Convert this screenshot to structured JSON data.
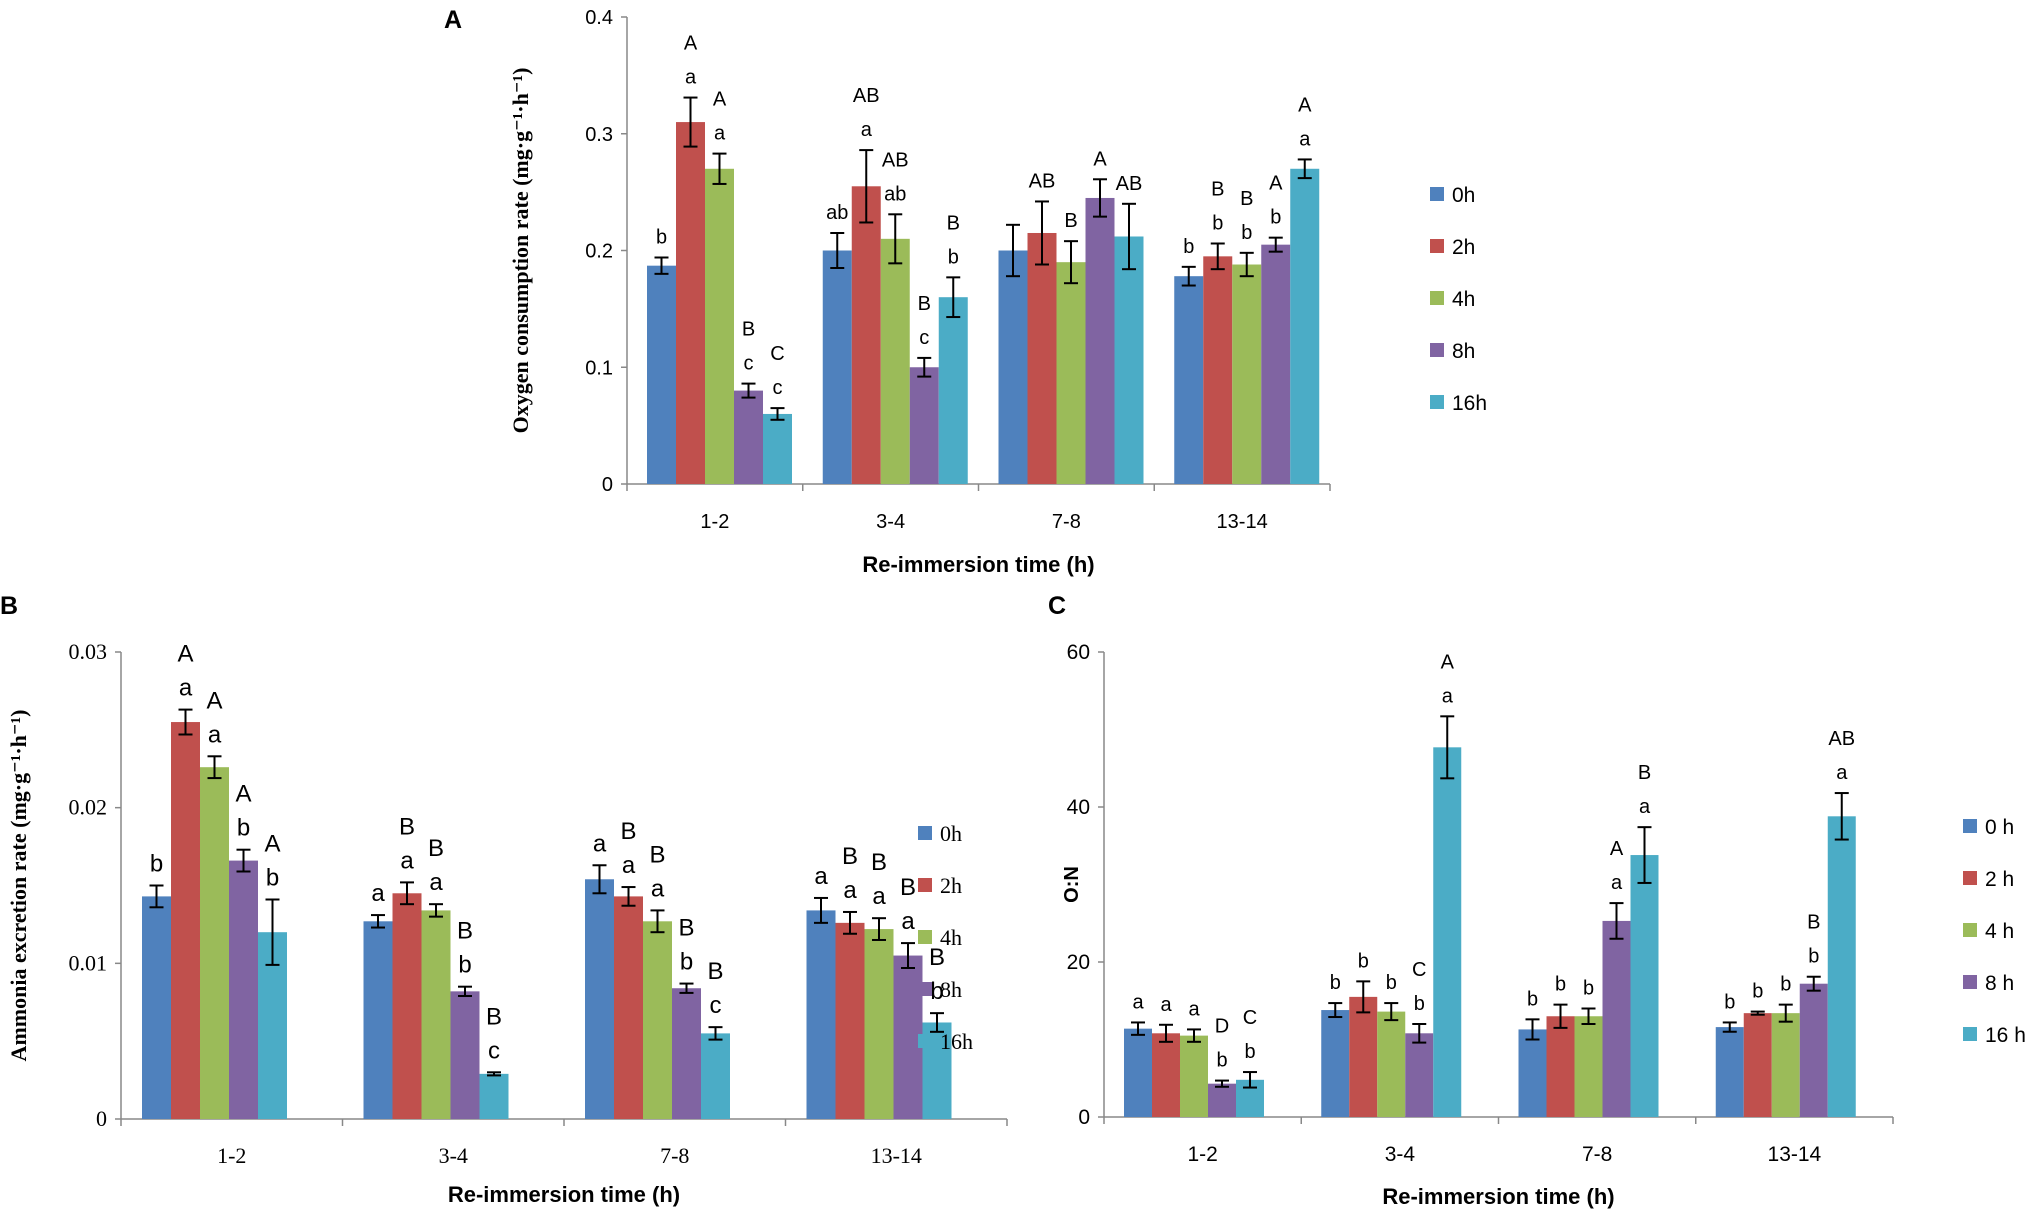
{
  "figure": {
    "colors": {
      "0h": "#4F81BD",
      "2h": "#C0504D",
      "4h": "#9BBB59",
      "8h": "#8064A2",
      "16h": "#4BACC6"
    }
  },
  "chart_data": [
    {
      "panel": "A",
      "type": "bar",
      "title": "",
      "xlabel": "Re-immersion time (h)",
      "ylabel": "Oxygen consumption rate (mg·g⁻¹·h⁻¹)",
      "ylim": [
        0,
        0.4
      ],
      "yticks": [
        0,
        0.1,
        0.2,
        0.3,
        0.4
      ],
      "ytick_labels": [
        "0",
        "0.1",
        "0.2",
        "0.3",
        "0.4"
      ],
      "categories": [
        "1-2",
        "3-4",
        "7-8",
        "13-14"
      ],
      "legend": [
        "0h",
        "2h",
        "4h",
        "8h",
        "16h"
      ],
      "legend_position": "right",
      "series": [
        {
          "name": "0h",
          "values": [
            0.187,
            0.2,
            0.2,
            0.178
          ],
          "errors": [
            0.007,
            0.015,
            0.022,
            0.008
          ],
          "lower": [
            "b",
            "ab",
            "",
            "b"
          ],
          "upper": [
            "",
            "",
            "",
            ""
          ]
        },
        {
          "name": "2h",
          "values": [
            0.31,
            0.255,
            0.215,
            0.195
          ],
          "errors": [
            0.021,
            0.031,
            0.027,
            0.011
          ],
          "lower": [
            "a",
            "a",
            "",
            "b"
          ],
          "upper": [
            "A",
            "AB",
            "AB",
            "B"
          ]
        },
        {
          "name": "4h",
          "values": [
            0.27,
            0.21,
            0.19,
            0.188
          ],
          "errors": [
            0.013,
            0.021,
            0.018,
            0.01
          ],
          "lower": [
            "a",
            "ab",
            "",
            "b"
          ],
          "upper": [
            "A",
            "AB",
            "B",
            "B"
          ]
        },
        {
          "name": "8h",
          "values": [
            0.08,
            0.1,
            0.245,
            0.205
          ],
          "errors": [
            0.006,
            0.008,
            0.016,
            0.006
          ],
          "lower": [
            "c",
            "c",
            "",
            "b"
          ],
          "upper": [
            "B",
            "B",
            "A",
            "A"
          ]
        },
        {
          "name": "16h",
          "values": [
            0.06,
            0.16,
            0.212,
            0.27
          ],
          "errors": [
            0.005,
            0.017,
            0.028,
            0.008
          ],
          "lower": [
            "c",
            "b",
            "",
            "a"
          ],
          "upper": [
            "C",
            "B",
            "AB",
            "A"
          ]
        }
      ]
    },
    {
      "panel": "B",
      "type": "bar",
      "title": "",
      "xlabel": "Re-immersion time (h)",
      "ylabel": "Ammonia excretion rate (mg·g⁻¹·h⁻¹)",
      "ylim": [
        0,
        0.03
      ],
      "yticks": [
        0,
        0.01,
        0.02,
        0.03
      ],
      "ytick_labels": [
        "0",
        "0.01",
        "0.02",
        "0.03"
      ],
      "categories": [
        "1-2",
        "3-4",
        "7-8",
        "13-14"
      ],
      "legend": [
        "0h",
        "2h",
        "4h",
        "8h",
        "16h"
      ],
      "legend_position": "right",
      "series": [
        {
          "name": "0h",
          "values": [
            0.0143,
            0.0127,
            0.0154,
            0.0134
          ],
          "errors": [
            0.0007,
            0.0004,
            0.0009,
            0.0008
          ],
          "lower": [
            "b",
            "a",
            "a",
            "a"
          ],
          "upper": [
            "",
            "",
            "",
            ""
          ]
        },
        {
          "name": "2h",
          "values": [
            0.0255,
            0.0145,
            0.0143,
            0.0126
          ],
          "errors": [
            0.0008,
            0.0007,
            0.0006,
            0.0007
          ],
          "lower": [
            "a",
            "a",
            "a",
            "a"
          ],
          "upper": [
            "A",
            "B",
            "B",
            "B"
          ]
        },
        {
          "name": "4h",
          "values": [
            0.0226,
            0.0134,
            0.0127,
            0.0122
          ],
          "errors": [
            0.0007,
            0.0004,
            0.0007,
            0.0007
          ],
          "lower": [
            "a",
            "a",
            "a",
            "a"
          ],
          "upper": [
            "A",
            "B",
            "B",
            "B"
          ]
        },
        {
          "name": "8h",
          "values": [
            0.0166,
            0.0082,
            0.0084,
            0.0105
          ],
          "errors": [
            0.0007,
            0.0003,
            0.0003,
            0.0008
          ],
          "lower": [
            "b",
            "b",
            "b",
            "a"
          ],
          "upper": [
            "A",
            "B",
            "B",
            "B"
          ]
        },
        {
          "name": "16h",
          "values": [
            0.012,
            0.0029,
            0.0055,
            0.0062
          ],
          "errors": [
            0.0021,
            0.0001,
            0.0004,
            0.0006
          ],
          "lower": [
            "b",
            "c",
            "c",
            "b"
          ],
          "upper": [
            "A",
            "B",
            "B",
            "B"
          ]
        }
      ]
    },
    {
      "panel": "C",
      "type": "bar",
      "title": "",
      "xlabel": "Re-immersion time (h)",
      "ylabel": "O:N",
      "ylim": [
        0,
        60
      ],
      "yticks": [
        0,
        20,
        40,
        60
      ],
      "ytick_labels": [
        "0",
        "20",
        "40",
        "60"
      ],
      "categories": [
        "1-2",
        "3-4",
        "7-8",
        "13-14"
      ],
      "legend": [
        "0 h",
        "2 h",
        "4 h",
        "8 h",
        "16 h"
      ],
      "legend_position": "right",
      "series": [
        {
          "name": "0 h",
          "values": [
            11.4,
            13.8,
            11.3,
            11.6
          ],
          "errors": [
            0.8,
            0.9,
            1.3,
            0.6
          ],
          "lower": [
            "a",
            "b",
            "b",
            "b"
          ],
          "upper": [
            "",
            "",
            "",
            ""
          ]
        },
        {
          "name": "2 h",
          "values": [
            10.8,
            15.5,
            13.0,
            13.4
          ],
          "errors": [
            1.1,
            2.0,
            1.5,
            0.2
          ],
          "lower": [
            "a",
            "b",
            "b",
            "b"
          ],
          "upper": [
            "",
            "",
            "",
            ""
          ]
        },
        {
          "name": "4 h",
          "values": [
            10.5,
            13.6,
            13.0,
            13.4
          ],
          "errors": [
            0.8,
            1.1,
            1.0,
            1.1
          ],
          "lower": [
            "a",
            "b",
            "b",
            "b"
          ],
          "upper": [
            "",
            "",
            "",
            ""
          ]
        },
        {
          "name": "8 h",
          "values": [
            4.3,
            10.8,
            25.3,
            17.2
          ],
          "errors": [
            0.4,
            1.2,
            2.3,
            0.9
          ],
          "lower": [
            "b",
            "b",
            "a",
            "b"
          ],
          "upper": [
            "D",
            "C",
            "A",
            "B"
          ]
        },
        {
          "name": "16 h",
          "values": [
            4.8,
            47.7,
            33.8,
            38.8
          ],
          "errors": [
            1.0,
            4.0,
            3.6,
            3.0
          ],
          "lower": [
            "b",
            "a",
            "a",
            "a"
          ],
          "upper": [
            "C",
            "A",
            "B",
            "AB"
          ]
        }
      ]
    }
  ]
}
